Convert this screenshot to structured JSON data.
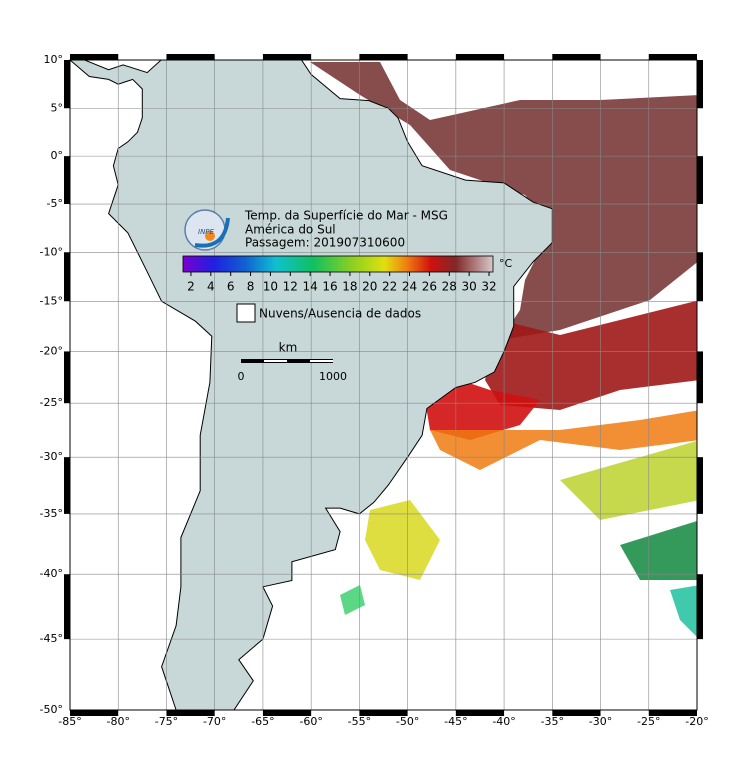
{
  "map": {
    "title": "Temp. da Superfície do Mar - MSG",
    "region": "América do Sul",
    "pass": "Passagem: 201907310600",
    "logo_text": "INPE",
    "colorbar": {
      "lim": [
        1.2,
        32.4
      ],
      "ticks": [
        2,
        4,
        6,
        8,
        10,
        12,
        14,
        16,
        18,
        20,
        22,
        24,
        26,
        28,
        30,
        32
      ],
      "unit": "°C"
    },
    "legend": "Nuvens/Ausencia de dados",
    "scale_bar": {
      "unit": "km",
      "ticks": [
        0,
        1000
      ]
    },
    "lon_ticks": [
      {
        "value": -85,
        "label": "-85°"
      },
      {
        "value": -80,
        "label": "-80°"
      },
      {
        "value": -75,
        "label": "-75°"
      },
      {
        "value": -70,
        "label": "-70°"
      },
      {
        "value": -65,
        "label": "-65°"
      },
      {
        "value": -60,
        "label": "-60°"
      },
      {
        "value": -55,
        "label": "-55°"
      },
      {
        "value": -50,
        "label": "-50°"
      },
      {
        "value": -45,
        "label": "-45°"
      },
      {
        "value": -40,
        "label": "-40°"
      },
      {
        "value": -35,
        "label": "-35°"
      },
      {
        "value": -30,
        "label": "-30°"
      },
      {
        "value": -25,
        "label": "-25°"
      },
      {
        "value": -20,
        "label": "-20°"
      }
    ],
    "lat_ticks": [
      {
        "value": 10,
        "label": "10°"
      },
      {
        "value": 5,
        "label": "5°"
      },
      {
        "value": 0,
        "label": "0°"
      },
      {
        "value": -5,
        "label": "-5°"
      },
      {
        "value": -10,
        "label": "-10°"
      },
      {
        "value": -15,
        "label": "-15°"
      },
      {
        "value": -20,
        "label": "-20°"
      },
      {
        "value": -25,
        "label": "-25°"
      },
      {
        "value": -30,
        "label": "-30°"
      },
      {
        "value": -35,
        "label": "-35°"
      },
      {
        "value": -40,
        "label": "-40°"
      },
      {
        "value": -45,
        "label": "-45°"
      },
      {
        "value": -50,
        "label": "-50°"
      }
    ]
  }
}
